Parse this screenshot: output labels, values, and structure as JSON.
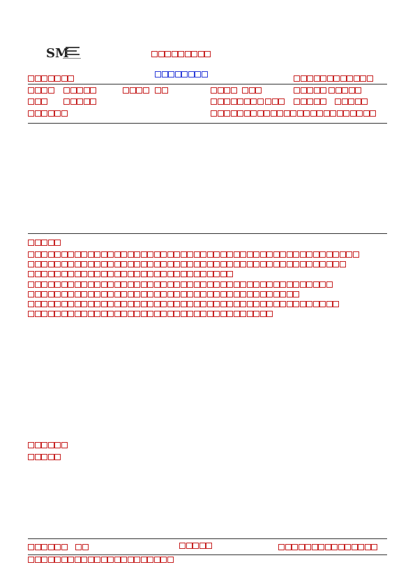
{
  "header": {
    "logo_text": "SM",
    "title": "□□□□□□□□□",
    "subtitle": "□□□□□□□□",
    "left_label": "□□□□□□□",
    "right_label": "□□□□□□□□□□□□"
  },
  "info_rows": [
    [
      "□□□□",
      "□□□□□",
      "□□□□",
      "□□",
      "□□□□",
      "□□□",
      "□□□□□",
      "□□□□□"
    ],
    [
      "□□□",
      "□□□□□",
      "□□□□□□□□",
      "□□□",
      "□□□□□",
      "□□□□□"
    ],
    [
      "□□□□□□",
      "□□□□□□□□□□□□□□□□□□□□□□□□□"
    ]
  ],
  "section": {
    "heading": "□□□□□",
    "lines": [
      "□□□□□□□□□□□□□□□□□□□□□□□□□□□□□□□□□□□□□□□□□□□□□□□□□□",
      "□□□□□□□□□□□□□□□□□□□□□□□□□□□□□□□□□□□□□□□□□□□□□□□□",
      "□□□□□□□□□□□□□□□□□□□□□□□□□□□□□□□",
      "□□□□□□□□□□□□□□□□□□□□□□□□□□□□□□□□□□□□□□□□□□□□□□",
      "□□□□□□□□□□□□□□□□□□□□□□□□□□□□□□□□□□□□□□□□□",
      "□□□□□□□□□□□□□□□□□□□□□□□□□□□□□□□□□□□□□□□□□□□□□□□",
      "□□□□□□□□□□□□□□□□□□□□□□□□□□□□□□□□□□□□□"
    ]
  },
  "lower": {
    "label_1": "□□□□□□",
    "label_2": "□□□□□"
  },
  "footer": {
    "left": "□□□□□□",
    "left_2": "□□",
    "middle": "□□□□□",
    "right": "□□□□□□□□□□□□□□□",
    "bottom": "□□□□□□□□□□□□□□□□□□□□□□"
  }
}
